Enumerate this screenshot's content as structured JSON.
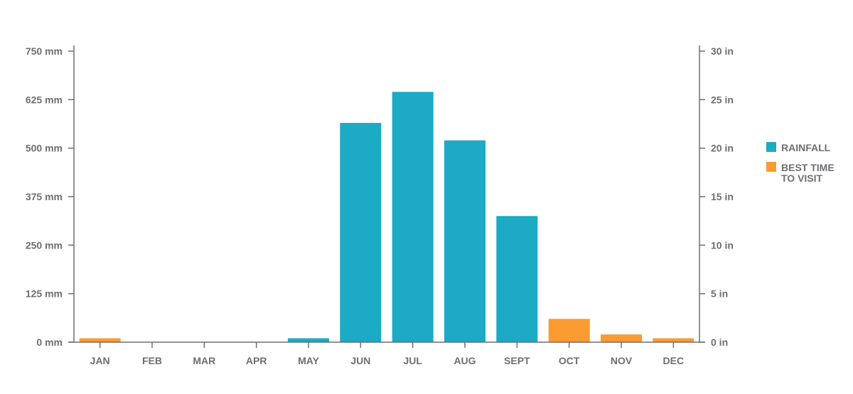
{
  "chart_data": {
    "type": "bar",
    "categories": [
      "JAN",
      "FEB",
      "MAR",
      "APR",
      "MAY",
      "JUN",
      "JUL",
      "AUG",
      "SEPT",
      "OCT",
      "NOV",
      "DEC"
    ],
    "values": [
      10,
      0,
      0,
      0,
      10,
      565,
      645,
      520,
      325,
      60,
      20,
      10
    ],
    "highlight": [
      true,
      false,
      false,
      false,
      false,
      false,
      false,
      false,
      false,
      true,
      true,
      true
    ],
    "ylim": [
      0,
      750
    ],
    "yticks": [
      "0 mm",
      "125 mm",
      "250 mm",
      "375 mm",
      "500 mm",
      "625 mm",
      "750 mm"
    ],
    "y2ticks": [
      "0 in",
      "5 in",
      "10 in",
      "15 in",
      "20 in",
      "25 in",
      "30 in"
    ],
    "grid": false,
    "legend_position": "right",
    "legend": [
      {
        "key": "rainfall",
        "label": "RAINFALL",
        "color": "#1caac5"
      },
      {
        "key": "best",
        "label": "BEST TIME TO VISIT",
        "color": "#fb9b32"
      }
    ]
  }
}
